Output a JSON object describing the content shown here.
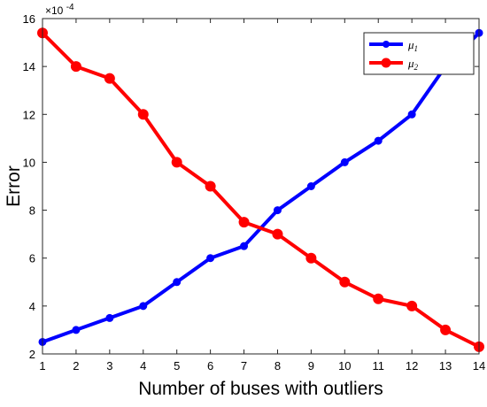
{
  "chart_data": {
    "type": "line",
    "title": "",
    "xlabel": "Number of buses with outliers",
    "ylabel": "Error",
    "y_multiplier": "×10",
    "y_exponent": "-4",
    "x": [
      1,
      2,
      3,
      4,
      5,
      6,
      7,
      8,
      9,
      10,
      11,
      12,
      13,
      14
    ],
    "xlim": [
      1,
      14
    ],
    "ylim": [
      2,
      16
    ],
    "xticks": [
      "1",
      "2",
      "3",
      "4",
      "5",
      "6",
      "7",
      "8",
      "9",
      "10",
      "11",
      "12",
      "13",
      "14"
    ],
    "yticks": [
      "2",
      "4",
      "6",
      "8",
      "10",
      "12",
      "14",
      "16"
    ],
    "ytick_values": [
      2,
      4,
      6,
      8,
      10,
      12,
      14,
      16
    ],
    "grid": false,
    "legend_position": "top-right",
    "series": [
      {
        "name": "μ",
        "subscript": "1",
        "color": "#0000ff",
        "marker": "circle-small",
        "values": [
          2.5,
          3.0,
          3.5,
          4.0,
          5.0,
          6.0,
          6.5,
          8.0,
          9.0,
          10.0,
          10.9,
          12.0,
          14.0,
          15.4
        ]
      },
      {
        "name": "μ",
        "subscript": "2",
        "color": "#ff0000",
        "marker": "circle-large",
        "values": [
          15.4,
          14.0,
          13.5,
          12.0,
          10.0,
          9.0,
          7.5,
          7.0,
          6.0,
          5.0,
          4.3,
          4.0,
          3.0,
          2.3
        ]
      }
    ]
  }
}
